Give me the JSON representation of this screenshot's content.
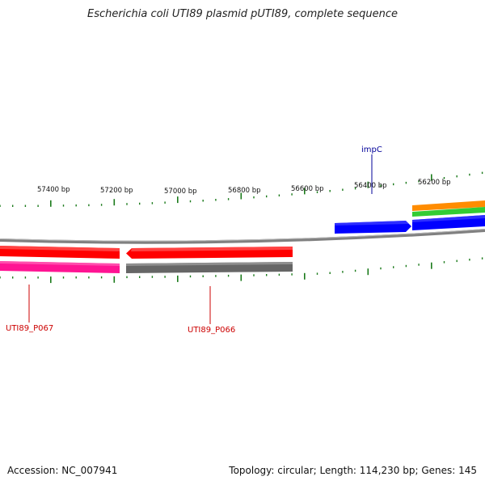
{
  "title": "Escherichia coli UTI89 plasmid pUTI89, complete sequence",
  "footer": {
    "accession": "Accession: NC_007941",
    "summary": "Topology: circular; Length: 114,230 bp; Genes: 145"
  },
  "ticks": [
    {
      "label": "57400 bp"
    },
    {
      "label": "57200 bp"
    },
    {
      "label": "57000 bp"
    },
    {
      "label": "56800 bp"
    },
    {
      "label": "56600 bp"
    },
    {
      "label": "56400 bp"
    },
    {
      "label": "56200 bp"
    }
  ],
  "genes": [
    {
      "label": "impC",
      "color": "#000099"
    },
    {
      "label": "UTI89_P067",
      "color": "#cc0000"
    },
    {
      "label": "UTI89_P066",
      "color": "#cc0000"
    }
  ],
  "colors": {
    "cds_red": "#ff0000",
    "gene_pink": "#ff1493",
    "gene_gray": "#666666",
    "cds_blue": "#0000ff",
    "orange": "#ff8c00",
    "green": "#33cc33",
    "tick_green": "#1a7a1a",
    "backbone": "#808080"
  }
}
